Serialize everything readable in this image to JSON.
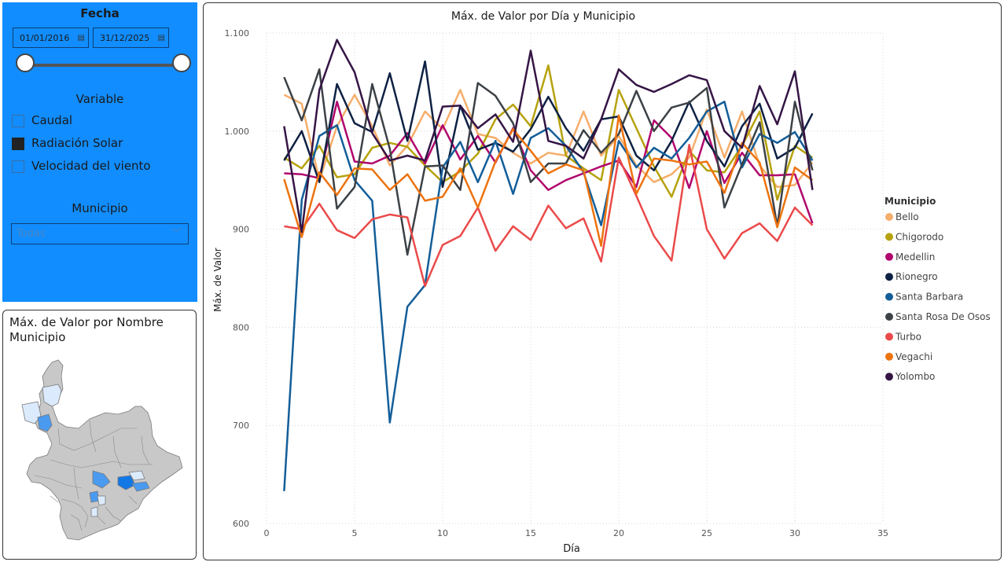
{
  "filters": {
    "date_title": "Fecha",
    "date_start": "01/01/2016",
    "date_end": "31/12/2025",
    "calendar_icon": "calendar-icon",
    "variable_title": "Variable",
    "variables": [
      {
        "label": "Caudal",
        "checked": false
      },
      {
        "label": "Radiación Solar",
        "checked": true
      },
      {
        "label": "Velocidad del viento",
        "checked": false
      }
    ],
    "municipio_title": "Municipio",
    "municipio_value": "Todas",
    "colors": {
      "panel": "#118dff"
    }
  },
  "map": {
    "title": "Máx. de Valor por Nombre Municipio",
    "colors": {
      "base": "#c8c8c8",
      "light": "#dbeafc",
      "mid": "#4a9af0",
      "dark": "#1278e6"
    }
  },
  "chart_data": {
    "type": "line",
    "title": "Máx. de Valor por Día y Municipio",
    "xlabel": "Día",
    "ylabel": "Máx. de Valor",
    "xlim": [
      0,
      35
    ],
    "ylim": [
      600,
      1100
    ],
    "xticks": [
      "0",
      "5",
      "10",
      "15",
      "20",
      "25",
      "30",
      "35"
    ],
    "yticks": [
      "600",
      "700",
      "800",
      "900",
      "1.000",
      "1.100"
    ],
    "grid": true,
    "legend_title": "Municipio",
    "legend_position": "right",
    "x": [
      1,
      2,
      3,
      4,
      5,
      6,
      7,
      8,
      9,
      10,
      11,
      12,
      13,
      14,
      15,
      16,
      17,
      18,
      19,
      20,
      21,
      22,
      23,
      24,
      25,
      26,
      27,
      28,
      29,
      30,
      31
    ],
    "series": [
      {
        "name": "Bello",
        "color": "#f5ae6b",
        "values": [
          1037,
          1028,
          950,
          1005,
          1037,
          1005,
          965,
          985,
          1020,
          1002,
          1042,
          997,
          993,
          978,
          967,
          978,
          975,
          1020,
          975,
          995,
          965,
          948,
          956,
          973,
          1022,
          973,
          1020,
          965,
          943,
          945,
          968
        ]
      },
      {
        "name": "Chigorodo",
        "color": "#b6a20e",
        "values": [
          973,
          962,
          985,
          953,
          956,
          983,
          988,
          984,
          965,
          948,
          959,
          977,
          1012,
          1027,
          1005,
          1067,
          975,
          962,
          950,
          1042,
          1003,
          964,
          933,
          980,
          960,
          958,
          985,
          1020,
          930,
          985,
          973
        ]
      },
      {
        "name": "Medellin",
        "color": "#b0066d",
        "values": [
          957,
          956,
          952,
          1030,
          969,
          967,
          975,
          998,
          967,
          1006,
          971,
          995,
          968,
          1003,
          960,
          940,
          950,
          957,
          964,
          970,
          943,
          1011,
          993,
          942,
          1000,
          947,
          978,
          955,
          955,
          956,
          906
        ]
      },
      {
        "name": "Rionegro",
        "color": "#0e2143",
        "values": [
          970,
          1000,
          948,
          1048,
          1008,
          999,
          1059,
          990,
          1071,
          943,
          1026,
          981,
          988,
          979,
          1002,
          1035,
          1003,
          980,
          1012,
          1015,
          975,
          960,
          990,
          1030,
          990,
          964,
          1005,
          1028,
          972,
          983,
          1018
        ]
      },
      {
        "name": "Santa Barbara",
        "color": "#135e99",
        "values": [
          633,
          930,
          995,
          1006,
          950,
          929,
          703,
          821,
          843,
          963,
          989,
          948,
          990,
          936,
          993,
          1003,
          985,
          958,
          904,
          990,
          963,
          983,
          972,
          993,
          1020,
          1030,
          963,
          997,
          988,
          999,
          970
        ]
      },
      {
        "name": "Santa Rosa De Osos",
        "color": "#3c4146",
        "values": [
          1055,
          1011,
          1063,
          921,
          943,
          1048,
          982,
          874,
          964,
          965,
          940,
          1049,
          1036,
          1008,
          948,
          967,
          967,
          1001,
          978,
          997,
          1041,
          1000,
          1024,
          1029,
          1044,
          922,
          966,
          1009,
          903,
          1030,
          960
        ]
      },
      {
        "name": "Turbo",
        "color": "#eb4a4a",
        "values": [
          903,
          900,
          926,
          899,
          891,
          910,
          915,
          912,
          842,
          884,
          893,
          922,
          878,
          903,
          889,
          924,
          901,
          911,
          867,
          973,
          934,
          893,
          868,
          986,
          900,
          870,
          896,
          906,
          888,
          922,
          904
        ]
      },
      {
        "name": "Vegachi",
        "color": "#ed730f",
        "values": [
          951,
          892,
          958,
          935,
          962,
          961,
          940,
          956,
          929,
          933,
          962,
          922,
          969,
          1002,
          980,
          957,
          966,
          960,
          883,
          1016,
          936,
          972,
          970,
          966,
          969,
          937,
          988,
          968,
          902,
          963,
          950
        ]
      },
      {
        "name": "Yolombo",
        "color": "#351545",
        "values": [
          1005,
          897,
          1042,
          1093,
          1060,
          998,
          970,
          975,
          970,
          1025,
          1026,
          1003,
          1017,
          989,
          1082,
          990,
          985,
          972,
          1012,
          1063,
          1047,
          1040,
          1048,
          1057,
          1052,
          1000,
          983,
          1046,
          1007,
          1061,
          940
        ]
      }
    ]
  }
}
